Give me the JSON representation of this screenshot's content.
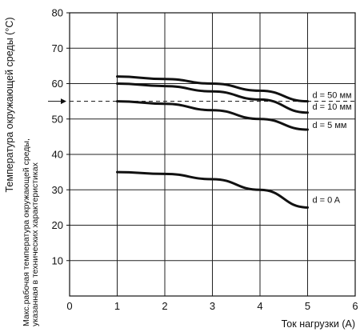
{
  "chart_data": {
    "type": "line",
    "xlabel": "Ток нагрузки (A)",
    "ylabel": "Температура окружающей среды (°C)",
    "xlim": [
      0,
      6
    ],
    "ylim": [
      0,
      80
    ],
    "xticks": [
      0,
      1,
      2,
      3,
      4,
      5,
      6
    ],
    "yticks": [
      10,
      20,
      30,
      40,
      50,
      60,
      70,
      80
    ],
    "grid": true,
    "reference_line": {
      "y": 55,
      "style": "dashed",
      "label_lines": [
        "Макс.рабочая температура окружающей среды,",
        "указанная в технических характеристиках"
      ]
    },
    "series": [
      {
        "name": "d = 50 мм",
        "x": [
          1,
          2,
          3,
          4,
          5
        ],
        "y": [
          62,
          61.3,
          60,
          58,
          55
        ]
      },
      {
        "name": "d = 10 мм",
        "x": [
          1,
          2,
          3,
          4,
          5
        ],
        "y": [
          60,
          59.3,
          57.8,
          55.5,
          51.8
        ]
      },
      {
        "name": "d = 5 мм",
        "x": [
          1,
          2,
          3,
          4,
          5
        ],
        "y": [
          55,
          54.3,
          52.5,
          50,
          47
        ]
      },
      {
        "name": "d = 0 A",
        "x": [
          1,
          2,
          3,
          4,
          5
        ],
        "y": [
          35,
          34.5,
          33,
          30,
          25
        ]
      }
    ]
  }
}
